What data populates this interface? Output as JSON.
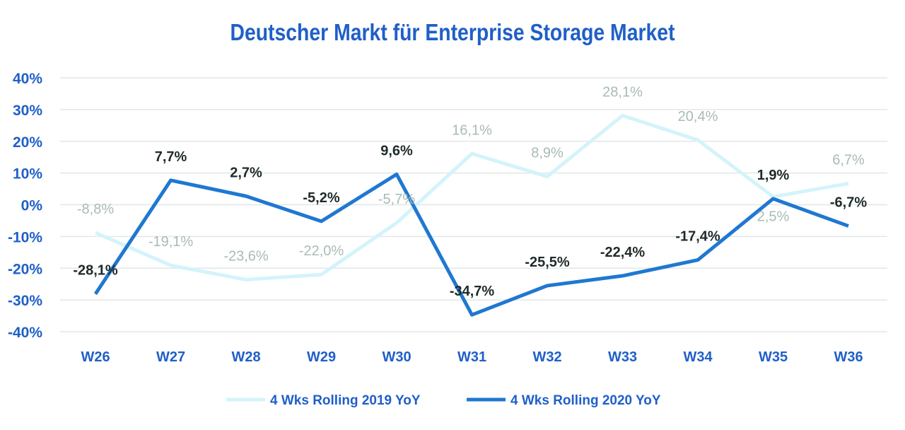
{
  "chart_data": {
    "type": "line",
    "title": "Deutscher Markt für Enterprise Storage Market",
    "xlabel": "",
    "ylabel": "",
    "categories": [
      "W26",
      "W27",
      "W28",
      "W29",
      "W30",
      "W31",
      "W32",
      "W33",
      "W34",
      "W35",
      "W36"
    ],
    "ylim": [
      -40,
      40
    ],
    "yticks": [
      40,
      30,
      20,
      10,
      0,
      -10,
      -20,
      -30,
      -40
    ],
    "ytick_labels": [
      "40%",
      "30%",
      "20%",
      "10%",
      "0%",
      "-10%",
      "-20%",
      "-30%",
      "-40%"
    ],
    "grid": true,
    "legend_position": "bottom",
    "series": [
      {
        "name": "4 Wks Rolling 2019 YoY",
        "color": "#d4f3fb",
        "label_color": "#a9bbb7",
        "values": [
          -8.8,
          -19.1,
          -23.6,
          -22.0,
          -5.7,
          16.1,
          8.9,
          28.1,
          20.4,
          2.5,
          6.7
        ],
        "labels": [
          "-8,8%",
          "-19,1%",
          "-23,6%",
          "-22,0%",
          "-5,7%",
          "16,1%",
          "8,9%",
          "28,1%",
          "20,4%",
          "2,5%",
          "6,7%"
        ]
      },
      {
        "name": "4 Wks Rolling 2020 YoY",
        "color": "#1f78d1",
        "label_color": "#1f2a2a",
        "values": [
          -28.1,
          7.7,
          2.7,
          -5.2,
          9.6,
          -34.7,
          -25.5,
          -22.4,
          -17.4,
          1.9,
          -6.7
        ],
        "labels": [
          "-28,1%",
          "7,7%",
          "2,7%",
          "-5,2%",
          "9,6%",
          "-34,7%",
          "-25,5%",
          "-22,4%",
          "-17,4%",
          "1,9%",
          "-6,7%"
        ]
      }
    ]
  },
  "colors": {
    "title": "#1f5fc8",
    "axis_text": "#1f5fc8",
    "grid": "#e3e7e7"
  }
}
